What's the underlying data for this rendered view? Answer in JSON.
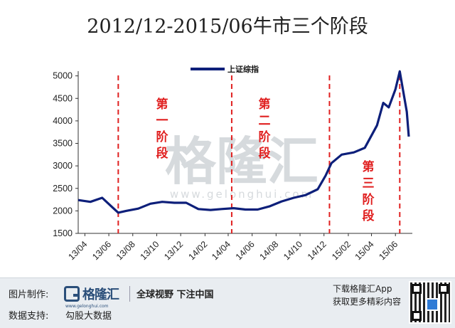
{
  "chart_data": {
    "type": "line",
    "title": "2012/12-2015/06牛市三个阶段",
    "legend": "上证综指",
    "legend_position": "top-center",
    "grid": false,
    "y_ticks": [
      1500,
      2000,
      2500,
      3000,
      3500,
      4000,
      4500,
      5000
    ],
    "ylim": [
      1500,
      5200
    ],
    "x_tick_labels": [
      "13/04",
      "13/06",
      "13/08",
      "13/10",
      "13/12",
      "14/02",
      "14/04",
      "14/06",
      "14/08",
      "14/10",
      "14/12",
      "15/02",
      "15/04",
      "15/06"
    ],
    "series": [
      {
        "name": "上证综指",
        "color": "#0d1f7a",
        "x": [
          "2013-03-15",
          "2013-04-15",
          "2013-05-15",
          "2013-06-10",
          "2013-06-25",
          "2013-07-15",
          "2013-08-15",
          "2013-09-15",
          "2013-10-15",
          "2013-11-15",
          "2013-12-15",
          "2014-01-15",
          "2014-02-15",
          "2014-03-15",
          "2014-04-15",
          "2014-05-15",
          "2014-06-15",
          "2014-07-15",
          "2014-08-15",
          "2014-09-15",
          "2014-10-15",
          "2014-11-15",
          "2014-12-05",
          "2014-12-20",
          "2015-01-15",
          "2015-02-15",
          "2015-03-15",
          "2015-04-15",
          "2015-05-01",
          "2015-05-15",
          "2015-06-01",
          "2015-06-12",
          "2015-06-20",
          "2015-06-30",
          "2015-07-05"
        ],
        "y": [
          2240,
          2200,
          2290,
          2080,
          1960,
          2000,
          2050,
          2160,
          2200,
          2180,
          2180,
          2040,
          2020,
          2040,
          2060,
          2030,
          2030,
          2100,
          2210,
          2290,
          2350,
          2480,
          2780,
          3060,
          3250,
          3300,
          3400,
          3900,
          4400,
          4300,
          4700,
          5100,
          4700,
          4200,
          3650
        ]
      }
    ],
    "phase_dividers": [
      "2013-06-25",
      "2014-04-10",
      "2014-12-15",
      "2015-06-12"
    ],
    "phase_labels": [
      "第一阶段",
      "第二阶段",
      "第三阶段"
    ]
  },
  "watermark": {
    "name": "格隆汇",
    "url": "www.gelonghui.com"
  },
  "footer": {
    "made_by_label": "图片制作:",
    "logo_name": "格隆汇",
    "logo_url": "www.gelonghui.com",
    "slogan": "全球视野 下注中国",
    "data_support_label": "数据支持:",
    "data_support_value": "勾股大数据",
    "download_text": "下载格隆汇App",
    "more_text": "获取更多精彩内容"
  },
  "colors": {
    "series": "#0d1f7a",
    "divider": "#e02020",
    "phase_text": "#e02020",
    "footer_bg": "#e9edf1",
    "brand": "#2b4f7a"
  }
}
